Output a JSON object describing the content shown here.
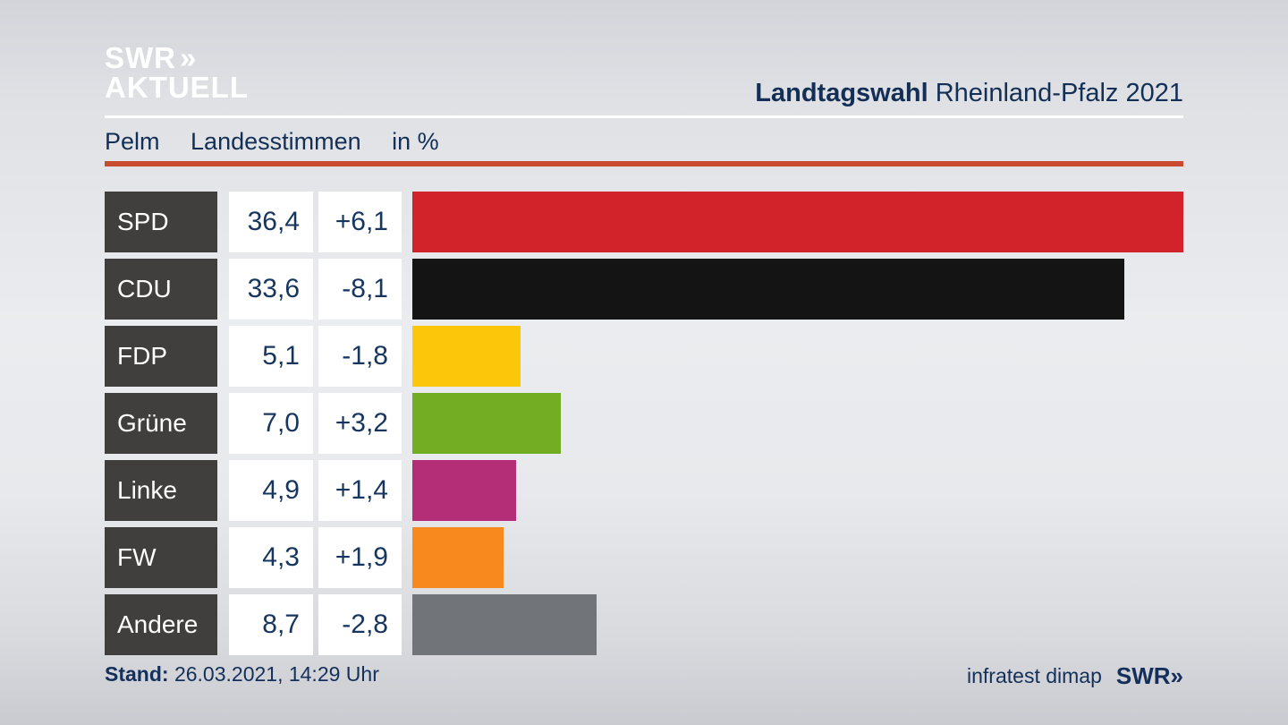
{
  "brand": {
    "logo_line1": "SWR",
    "logo_chevrons": "»",
    "logo_line2": "AKTUELL"
  },
  "header": {
    "title_bold": "Landtagswahl",
    "title_rest": "Rheinland-Pfalz 2021"
  },
  "subtitle": {
    "region": "Pelm",
    "vote_type": "Landesstimmen",
    "unit": "in %"
  },
  "footer": {
    "stand_label": "Stand:",
    "stand_value": "26.03.2021, 14:29 Uhr",
    "source": "infratest dimap",
    "swr_logo": "SWR»"
  },
  "colors": {
    "navy_text": "#14305a",
    "red_divider": "#c84b2f",
    "party_box_bg": "#413f3d",
    "value_box_bg": "#ffffff"
  },
  "chart_data": {
    "type": "bar",
    "orientation": "horizontal",
    "title": "Pelm Landesstimmen in %",
    "unit": "%",
    "max_scale": 36.4,
    "grid": false,
    "legend": false,
    "categories": [
      "SPD",
      "CDU",
      "FDP",
      "Grüne",
      "Linke",
      "FW",
      "Andere"
    ],
    "values": [
      36.4,
      33.6,
      5.1,
      7.0,
      4.9,
      4.3,
      8.7
    ],
    "value_labels": [
      "36,4",
      "33,6",
      "5,1",
      "7,0",
      "4,9",
      "4,3",
      "8,7"
    ],
    "changes": [
      "+6,1",
      "-8,1",
      "-1,8",
      "+3,2",
      "+1,4",
      "+1,9",
      "-2,8"
    ],
    "bar_colors": [
      "#d2232a",
      "#141414",
      "#fcc60b",
      "#72ad24",
      "#b32d77",
      "#f8891e",
      "#717478"
    ]
  }
}
